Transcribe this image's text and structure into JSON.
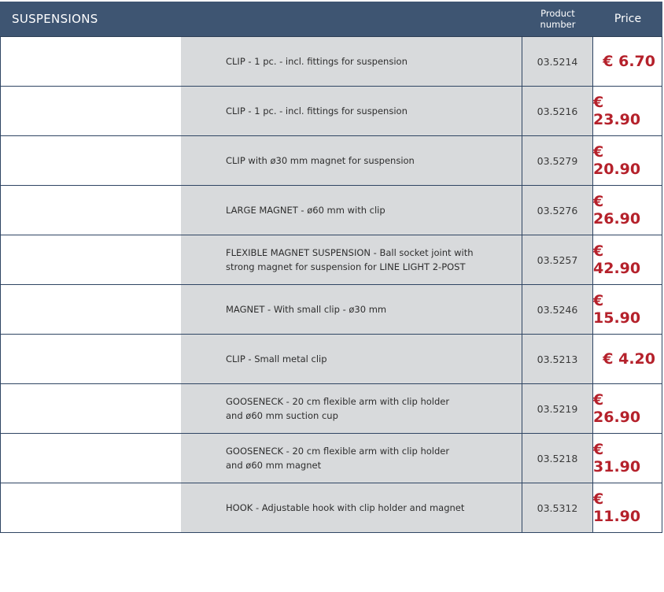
{
  "header": {
    "section_title": "SUSPENSIONS",
    "product_number_label": "Product\nnumber",
    "price_label": "Price"
  },
  "rows": [
    {
      "description": "CLIP  - 1 pc. - incl. fittings for suspension",
      "product_number": "03.5214",
      "price": "€ 6.70"
    },
    {
      "description": "CLIP  - 1 pc. - incl. fittings for suspension",
      "product_number": "03.5216",
      "price": "€ 23.90"
    },
    {
      "description": "CLIP with ø30 mm magnet for suspension",
      "product_number": "03.5279",
      "price": "€ 20.90"
    },
    {
      "description": "LARGE MAGNET - ø60 mm with clip",
      "product_number": "03.5276",
      "price": "€ 26.90"
    },
    {
      "description": "FLEXIBLE MAGNET  SUSPENSION  - Ball socket joint with\nstrong magnet for suspension for LINE LIGHT 2-POST",
      "product_number": "03.5257",
      "price": "€ 42.90"
    },
    {
      "description": "MAGNET -  With small clip - ø30 mm",
      "product_number": "03.5246",
      "price": "€ 15.90"
    },
    {
      "description": "CLIP - Small metal clip",
      "product_number": "03.5213",
      "price": "€ 4.20"
    },
    {
      "description": "GOOSENECK - 20 cm flexible arm with clip holder\nand  ø60 mm suction  cup",
      "product_number": "03.5219",
      "price": "€ 26.90"
    },
    {
      "description": "GOOSENECK - 20 cm flexible arm with clip holder\nand  ø60 mm magnet",
      "product_number": "03.5218",
      "price": "€ 31.90"
    },
    {
      "description": "HOOK - Adjustable hook with clip holder and magnet",
      "product_number": "03.5312",
      "price": "€ 11.90"
    }
  ],
  "colors": {
    "header_bg": "#3e5572",
    "price_red": "#b5212b",
    "row_gray": "#d8dadc",
    "border": "#2f4563"
  }
}
